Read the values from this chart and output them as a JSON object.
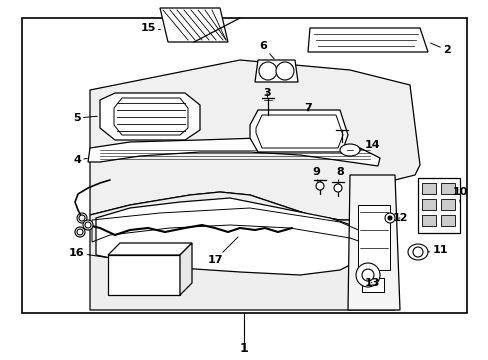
{
  "bg_color": "#ffffff",
  "line_color": "#000000",
  "label_color": "#000000",
  "fig_w": 4.89,
  "fig_h": 3.6,
  "dpi": 100,
  "border": [
    22,
    18,
    445,
    295
  ],
  "part_labels": {
    "1": [
      244,
      348,
      244,
      320,
      "center"
    ],
    "2": [
      448,
      55,
      415,
      55,
      "left"
    ],
    "3": [
      268,
      108,
      268,
      95,
      "center"
    ],
    "4": [
      78,
      158,
      110,
      165,
      "right"
    ],
    "5": [
      78,
      115,
      118,
      120,
      "right"
    ],
    "6": [
      265,
      48,
      285,
      57,
      "center"
    ],
    "7": [
      310,
      122,
      310,
      110,
      "center"
    ],
    "8": [
      338,
      190,
      338,
      178,
      "center"
    ],
    "9": [
      318,
      185,
      318,
      173,
      "center"
    ],
    "10": [
      458,
      195,
      440,
      195,
      "left"
    ],
    "11": [
      440,
      252,
      425,
      248,
      "left"
    ],
    "12": [
      395,
      220,
      385,
      215,
      "left"
    ],
    "13": [
      370,
      280,
      360,
      270,
      "left"
    ],
    "14": [
      370,
      148,
      358,
      148,
      "left"
    ],
    "15": [
      145,
      30,
      188,
      38,
      "right"
    ],
    "16": [
      78,
      255,
      112,
      252,
      "right"
    ],
    "17": [
      215,
      272,
      215,
      260,
      "center"
    ]
  }
}
